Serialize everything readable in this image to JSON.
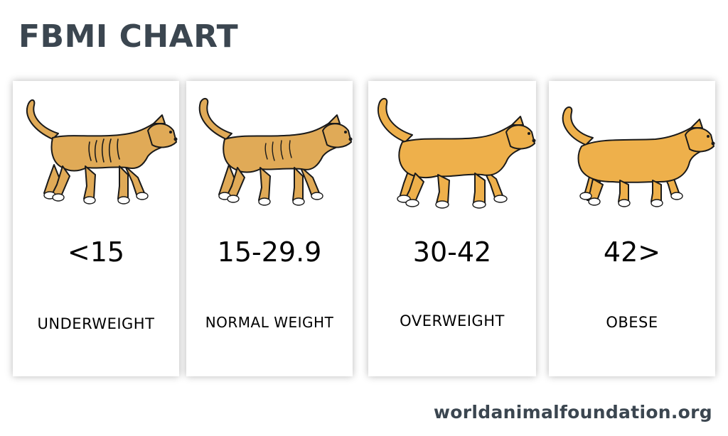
{
  "title": "FBMI CHART",
  "cards": [
    {
      "range": "<15",
      "label": "UNDERWEIGHT",
      "icon": "thin-cat-icon"
    },
    {
      "range": "15-29.9",
      "label": "NORMAL WEIGHT",
      "icon": "normal-cat-icon"
    },
    {
      "range": "30-42",
      "label": "OVERWEIGHT",
      "icon": "overweight-cat-icon"
    },
    {
      "range": "42>",
      "label": "OBESE",
      "icon": "obese-cat-icon"
    }
  ],
  "footer": "worldanimalfoundation.org",
  "colors": {
    "title": "#3b4650",
    "cat_fill_lean": "#e0aa57",
    "cat_fill_full": "#eeb04b",
    "outline": "#1a1a1a"
  }
}
